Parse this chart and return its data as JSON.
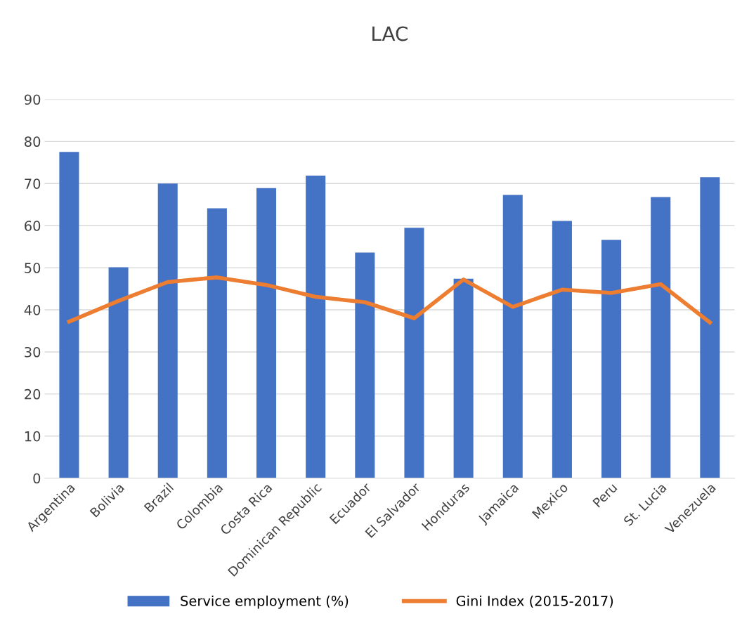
{
  "chart_data": {
    "type": "bar",
    "title": "LAC",
    "categories": [
      "Argentina",
      "Bolivia",
      "Brazil",
      "Colombia",
      "Costa Rica",
      "Dominican Republic",
      "Ecuador",
      "El Salvador",
      "Honduras",
      "Jamaica",
      "Mexico",
      "Peru",
      "St. Lucia",
      "Venezuela"
    ],
    "series": [
      {
        "name": "Service employment (%)",
        "color": "#4472c4",
        "values": [
          77.5,
          50.1,
          70.0,
          64.1,
          68.9,
          71.9,
          53.6,
          59.5,
          47.4,
          67.3,
          61.1,
          56.6,
          66.8,
          71.5
        ]
      },
      {
        "name": "Gini Index (2015-2017)",
        "type": "line",
        "color": "#ed7d31",
        "values": [
          37.2,
          42.1,
          46.6,
          47.7,
          45.9,
          43.1,
          41.8,
          38.0,
          47.2,
          40.7,
          44.8,
          44.0,
          46.1,
          37.0
        ]
      }
    ],
    "ylim": [
      0,
      90
    ],
    "yticks": [
      0,
      10,
      20,
      30,
      40,
      50,
      60,
      70,
      80,
      90
    ],
    "grid": "y",
    "legend": "bottom",
    "marker": "none",
    "line_style": "solid"
  }
}
